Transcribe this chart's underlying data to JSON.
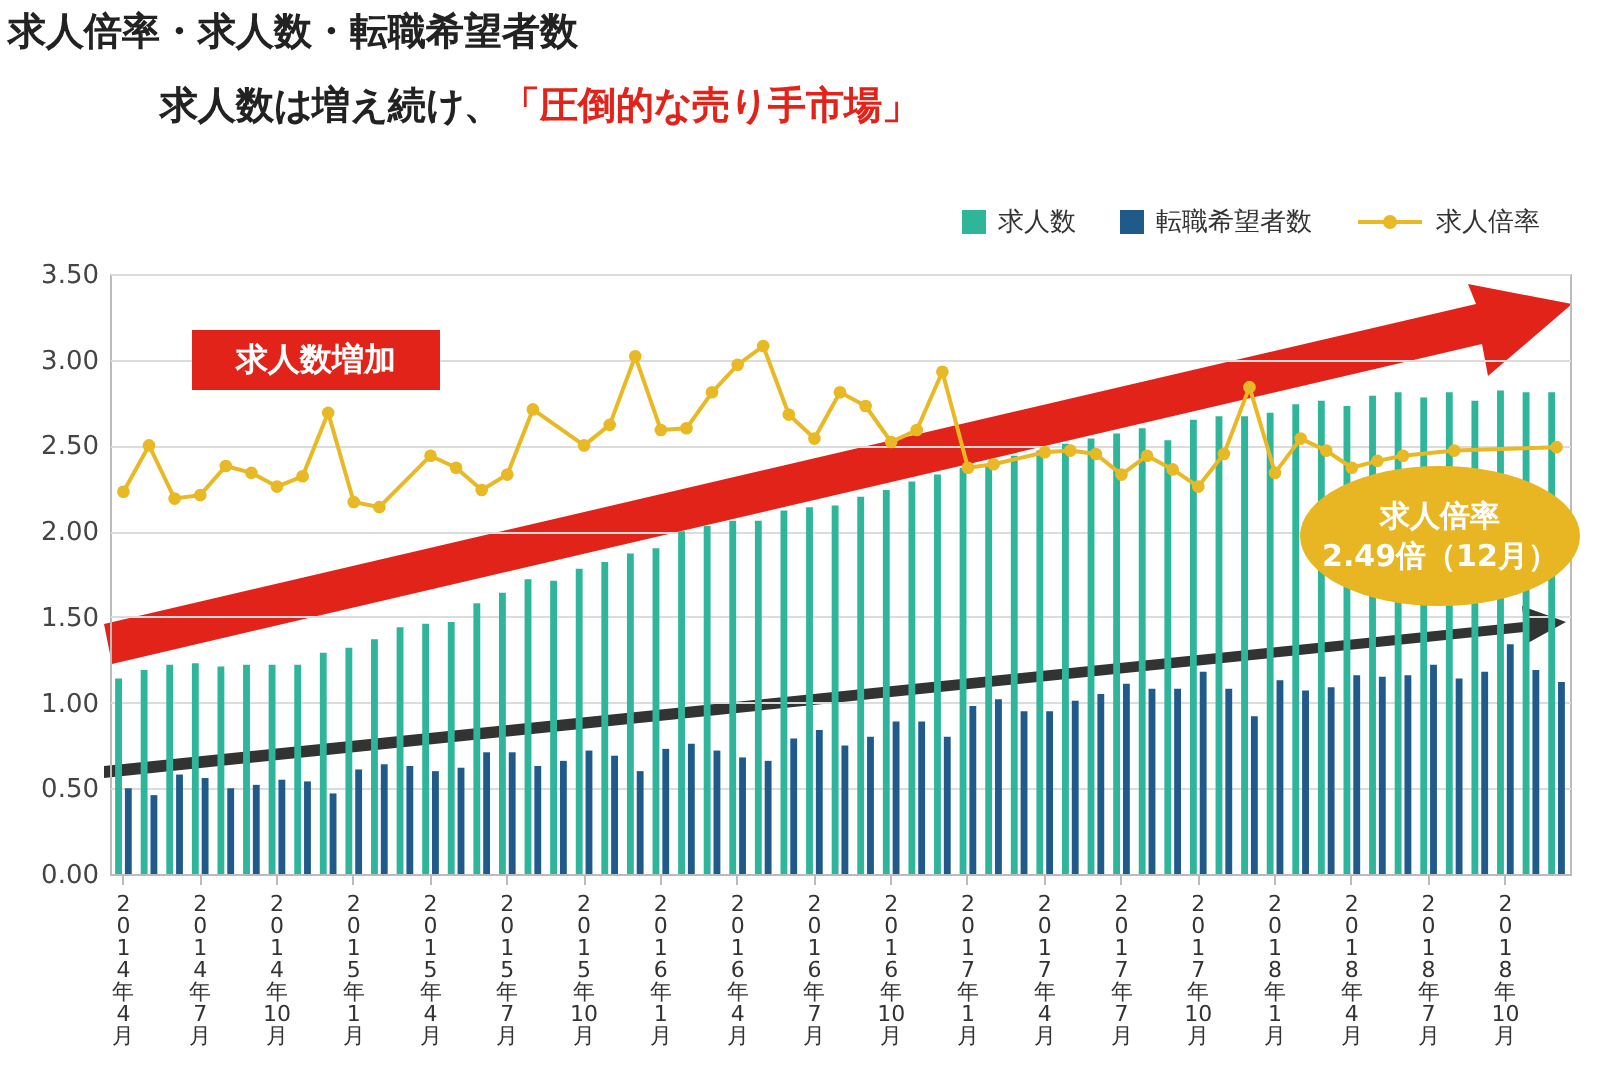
{
  "chart_data": {
    "type": "bar",
    "title": "求人倍率・求人数・転職希望者数",
    "subtitle": "求人数は増え続け、「圧倒的な売り手市場」",
    "annotations": [
      "求人数増加",
      "求人倍率\n2.49倍（12月）"
    ],
    "categories": [
      "2014年4月",
      null,
      null,
      "2014年7月",
      null,
      null,
      "2014年10月",
      null,
      null,
      "2015年1月",
      null,
      null,
      "2015年4月",
      null,
      null,
      "2015年7月",
      null,
      null,
      "2015年10月",
      null,
      null,
      "2016年1月",
      null,
      null,
      "2016年4月",
      null,
      null,
      "2016年7月",
      null,
      null,
      "2016年10月",
      null,
      null,
      "2017年1月",
      null,
      null,
      "2017年4月",
      null,
      null,
      "2017年7月",
      null,
      null,
      "2017年10月",
      null,
      null,
      "2018年1月",
      null,
      null,
      "2018年4月",
      null,
      null,
      "2018年7月",
      null,
      null,
      "2018年10月",
      null,
      null
    ],
    "series": [
      {
        "name": "求人数",
        "color": "#2fb59a",
        "values": [
          1.14,
          1.19,
          1.22,
          1.23,
          1.21,
          1.22,
          1.22,
          1.22,
          1.29,
          1.32,
          1.37,
          1.44,
          1.46,
          1.47,
          1.58,
          1.64,
          1.72,
          1.71,
          1.78,
          1.82,
          1.87,
          1.9,
          2.0,
          2.03,
          2.06,
          2.06,
          2.12,
          2.14,
          2.15,
          2.2,
          2.24,
          2.29,
          2.33,
          2.37,
          2.39,
          2.44,
          2.47,
          2.51,
          2.54,
          2.57,
          2.6,
          2.53,
          2.65,
          2.67,
          2.67,
          2.69,
          2.74,
          2.76,
          2.73,
          2.79,
          2.81,
          2.78,
          2.81,
          2.76,
          2.82,
          2.81,
          2.81
        ]
      },
      {
        "name": "転職希望者数",
        "color": "#1f5a8a",
        "values": [
          0.5,
          0.46,
          0.58,
          0.56,
          0.5,
          0.52,
          0.55,
          0.54,
          0.47,
          0.61,
          0.64,
          0.63,
          0.6,
          0.62,
          0.71,
          0.71,
          0.63,
          0.66,
          0.72,
          0.69,
          0.6,
          0.73,
          0.76,
          0.72,
          0.68,
          0.66,
          0.79,
          0.84,
          0.75,
          0.8,
          0.89,
          0.89,
          0.8,
          0.98,
          1.02,
          0.95,
          0.95,
          1.01,
          1.05,
          1.11,
          1.08,
          1.08,
          1.18,
          1.08,
          0.92,
          1.13,
          1.07,
          1.09,
          1.16,
          1.15,
          1.16,
          1.22,
          1.14,
          1.18,
          1.34,
          1.19,
          1.12
        ]
      },
      {
        "name": "求人倍率",
        "type": "line",
        "color": "#e9b825",
        "values": [
          2.23,
          2.5,
          2.19,
          2.21,
          2.38,
          2.34,
          2.26,
          2.32,
          2.69,
          2.17,
          2.14,
          null,
          2.44,
          2.37,
          2.24,
          2.33,
          2.71,
          null,
          2.5,
          2.62,
          3.02,
          2.59,
          2.6,
          2.81,
          2.97,
          3.08,
          2.68,
          2.54,
          2.81,
          2.73,
          2.52,
          2.59,
          2.93,
          2.37,
          2.39,
          null,
          2.46,
          2.47,
          2.45,
          2.33,
          2.44,
          2.36,
          2.26,
          2.45,
          2.84,
          2.34,
          2.54,
          2.47,
          2.37,
          2.41,
          2.44,
          null,
          2.47,
          null,
          null,
          null,
          2.49
        ]
      }
    ],
    "ylim": [
      0,
      3.5
    ],
    "yticks": [
      {
        "value": 0,
        "label": "0.00"
      },
      {
        "value": 0.5,
        "label": "0.50"
      },
      {
        "value": 1,
        "label": "1.00"
      },
      {
        "value": 1.5,
        "label": "1.50"
      },
      {
        "value": 2,
        "label": "2.00"
      },
      {
        "value": 2.5,
        "label": "2.50"
      },
      {
        "value": 3,
        "label": "3.00"
      },
      {
        "value": 3.5,
        "label": "3.50"
      }
    ],
    "grid": "y",
    "legend": "top right",
    "marker": "circle"
  }
}
